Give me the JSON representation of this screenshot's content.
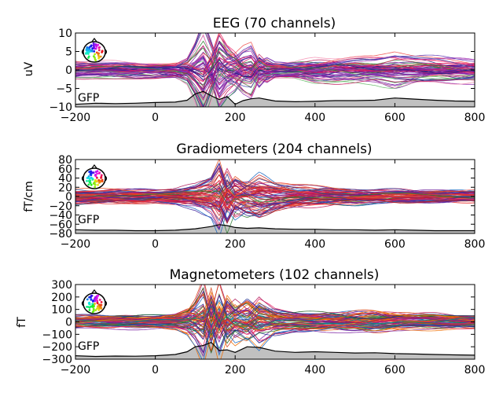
{
  "chart_data": [
    {
      "type": "line",
      "title": "EEG (70 channels)",
      "ylabel": "uV",
      "xlabel": "",
      "xlim": [
        -200,
        800
      ],
      "ylim": [
        -10,
        10
      ],
      "x_ticks": [
        -200,
        0,
        200,
        400,
        600,
        800
      ],
      "y_ticks": [
        -10,
        -5,
        0,
        5,
        10
      ],
      "n_channels": 70,
      "gfp_label": "GFP",
      "gfp_curve": {
        "x": [
          -200,
          -150,
          -100,
          -50,
          0,
          50,
          80,
          100,
          120,
          140,
          160,
          180,
          200,
          220,
          240,
          260,
          280,
          300,
          350,
          400,
          450,
          500,
          550,
          600,
          650,
          700,
          750,
          800
        ],
        "y": [
          -9.3,
          -9.0,
          -9.1,
          -9.0,
          -8.8,
          -8.7,
          -8.2,
          -6.5,
          -5.8,
          -7.0,
          -8.0,
          -7.2,
          -9.3,
          -8.3,
          -7.8,
          -7.6,
          -8.0,
          -8.4,
          -8.6,
          -8.5,
          -8.3,
          -8.3,
          -8.2,
          -7.6,
          -7.9,
          -8.2,
          -8.4,
          -8.5
        ]
      },
      "trace_profile": {
        "x": [
          -200,
          -150,
          -100,
          -50,
          0,
          50,
          80,
          100,
          120,
          140,
          160,
          180,
          200,
          220,
          240,
          260,
          280,
          300,
          350,
          400,
          450,
          500,
          550,
          600,
          650,
          700,
          750,
          800
        ],
        "y": [
          0.2,
          0.1,
          0.5,
          0.6,
          0.3,
          0.0,
          1.0,
          4.0,
          7.5,
          2.0,
          -5.0,
          -2.0,
          -0.5,
          2.0,
          3.0,
          -1.0,
          0.5,
          0.0,
          0.0,
          0.5,
          0.8,
          1.0,
          1.2,
          1.8,
          1.2,
          0.8,
          0.6,
          0.5
        ]
      },
      "envelope": [
        3,
        3,
        3,
        3,
        3,
        3,
        4,
        6,
        10,
        9,
        9,
        8,
        7,
        6,
        6,
        5,
        4,
        3,
        3,
        4,
        4,
        4,
        4,
        5,
        4,
        4,
        4,
        4
      ],
      "palette": [
        "#2e7d32",
        "#7b1fa2",
        "#c2185b",
        "#e91e63",
        "#8e24aa",
        "#1a237e",
        "#6a1b9a",
        "#4a148c",
        "#ab47bc",
        "#d81b60",
        "#5e35b1",
        "#66bb6a",
        "#ef5350",
        "#f48fb1",
        "#9c27b0",
        "#3949ab"
      ],
      "gfp_fill": "#c0c0c0"
    },
    {
      "type": "line",
      "title": "Gradiometers (204 channels)",
      "ylabel": "fT/cm",
      "xlabel": "",
      "xlim": [
        -200,
        800
      ],
      "ylim": [
        -80,
        80
      ],
      "x_ticks": [
        -200,
        0,
        200,
        400,
        600,
        800
      ],
      "y_ticks": [
        -80,
        -60,
        -40,
        -20,
        0,
        20,
        40,
        60,
        80
      ],
      "n_channels": 204,
      "gfp_label": "GFP",
      "gfp_curve": {
        "x": [
          -200,
          -150,
          -100,
          -50,
          0,
          50,
          100,
          140,
          160,
          180,
          200,
          230,
          260,
          300,
          350,
          400,
          450,
          500,
          550,
          600,
          650,
          700,
          750,
          800
        ],
        "y": [
          -72,
          -73,
          -73,
          -74,
          -74,
          -73,
          -70,
          -65,
          -61,
          -63,
          -67,
          -69,
          -68,
          -70,
          -71,
          -71,
          -72,
          -72,
          -73,
          -72,
          -73,
          -74,
          -74,
          -74
        ]
      },
      "trace_profile": {
        "x": [
          -200,
          -150,
          -100,
          -50,
          0,
          50,
          100,
          140,
          160,
          180,
          200,
          230,
          260,
          300,
          350,
          400,
          450,
          500,
          550,
          600,
          650,
          700,
          750,
          800
        ],
        "y": [
          0,
          0,
          0,
          0,
          0,
          0,
          5,
          10,
          30,
          -20,
          10,
          -5,
          5,
          0,
          0,
          0,
          0,
          0,
          0,
          0,
          0,
          0,
          0,
          0
        ]
      },
      "envelope": [
        22,
        22,
        22,
        22,
        22,
        25,
        35,
        60,
        90,
        80,
        60,
        55,
        65,
        45,
        35,
        30,
        25,
        25,
        22,
        22,
        20,
        20,
        20,
        20
      ],
      "palette": [
        "#d32f2f",
        "#c62828",
        "#e53935",
        "#ef5350",
        "#ad1457",
        "#c2185b",
        "#1565c0",
        "#283593",
        "#6a1b9a",
        "#e64a19",
        "#2e7d32",
        "#4527a0",
        "#d81b60",
        "#b71c1c"
      ],
      "gfp_fill": "#c0c0c0"
    },
    {
      "type": "line",
      "title": "Magnetometers (102 channels)",
      "ylabel": "fT",
      "xlabel": "",
      "xlim": [
        -200,
        800
      ],
      "ylim": [
        -300,
        300
      ],
      "x_ticks": [
        -200,
        0,
        200,
        400,
        600,
        800
      ],
      "y_ticks": [
        -300,
        -200,
        -100,
        0,
        100,
        200,
        300
      ],
      "n_channels": 102,
      "gfp_label": "GFP",
      "gfp_curve": {
        "x": [
          -200,
          -150,
          -100,
          -50,
          0,
          50,
          80,
          100,
          120,
          140,
          160,
          180,
          200,
          230,
          260,
          300,
          350,
          400,
          450,
          500,
          550,
          600,
          650,
          700,
          750,
          800
        ],
        "y": [
          -272,
          -278,
          -275,
          -276,
          -272,
          -262,
          -240,
          -200,
          -190,
          -165,
          -230,
          -225,
          -245,
          -200,
          -205,
          -235,
          -245,
          -240,
          -245,
          -250,
          -248,
          -255,
          -258,
          -262,
          -265,
          -268
        ]
      },
      "trace_profile": {
        "x": [
          -200,
          -150,
          -100,
          -50,
          0,
          50,
          80,
          100,
          120,
          140,
          160,
          180,
          200,
          230,
          260,
          300,
          350,
          400,
          450,
          500,
          550,
          600,
          650,
          700,
          750,
          800
        ],
        "y": [
          0,
          0,
          0,
          0,
          0,
          0,
          10,
          60,
          150,
          -100,
          120,
          -60,
          20,
          -40,
          60,
          0,
          0,
          0,
          0,
          0,
          0,
          0,
          0,
          0,
          0,
          0
        ]
      },
      "envelope": [
        80,
        80,
        80,
        80,
        80,
        90,
        150,
        220,
        300,
        260,
        250,
        230,
        200,
        210,
        230,
        160,
        120,
        110,
        110,
        120,
        130,
        110,
        90,
        90,
        85,
        80
      ],
      "palette": [
        "#2e7d32",
        "#1b5e20",
        "#e65100",
        "#f57c00",
        "#d84315",
        "#c2185b",
        "#ad1457",
        "#7b1fa2",
        "#6a1b9a",
        "#283593",
        "#1565c0",
        "#ef6c00",
        "#e91e63",
        "#00897b"
      ],
      "gfp_fill": "#c0c0c0"
    }
  ]
}
